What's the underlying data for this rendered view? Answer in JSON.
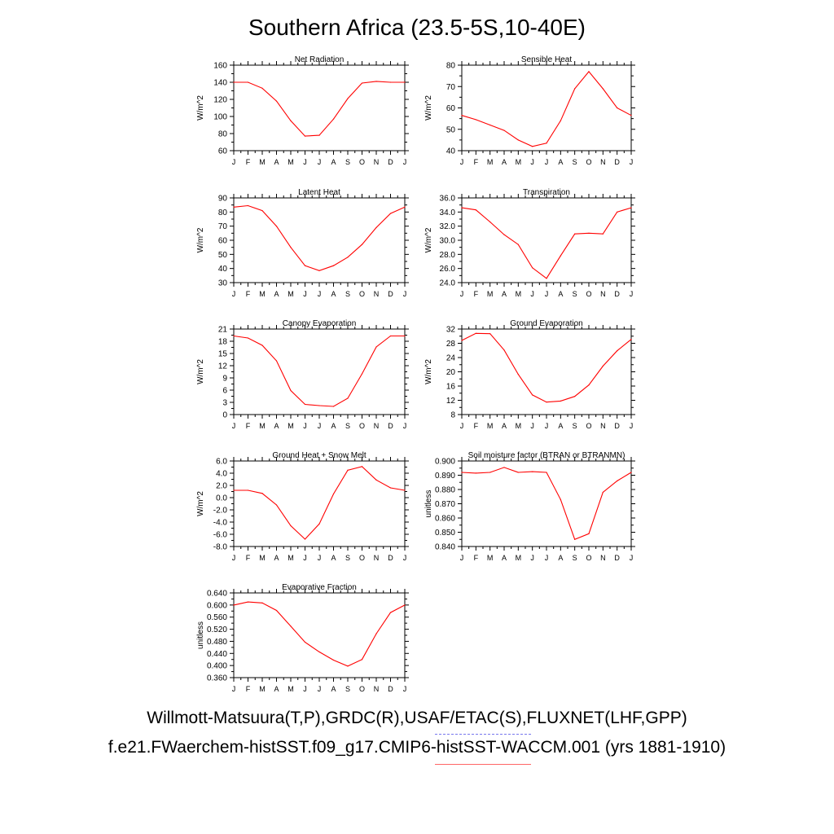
{
  "title": "Southern Africa (23.5-5S,10-40E)",
  "legend": {
    "observations": "Willmott-Matsuura(T,P),GRDC(R),USAF/ETAC(S),FLUXNET(LHF,GPP)",
    "model": "f.e21.FWaerchem-histSST.f09_g17.CMIP6-histSST-WACCM.001 (yrs 1881-1910)",
    "observations_color": "#7777ee",
    "model_color": "#ff0000"
  },
  "chart_data": [
    {
      "type": "line",
      "title": "Net Radiation",
      "ylabel": "W/m^2",
      "xticks": [
        "J",
        "F",
        "M",
        "A",
        "M",
        "J",
        "J",
        "A",
        "S",
        "O",
        "N",
        "D",
        "J"
      ],
      "yticks": [
        "60",
        "80",
        "100",
        "120",
        "140",
        "160"
      ],
      "ylim": [
        60,
        160
      ],
      "series": [
        {
          "color": "#ff0000",
          "values": [
            140,
            140,
            133,
            118,
            95,
            77,
            78,
            97,
            121,
            139,
            141,
            140,
            140
          ]
        }
      ]
    },
    {
      "type": "line",
      "title": "Sensible Heat",
      "ylabel": "W/m^2",
      "xticks": [
        "J",
        "F",
        "M",
        "A",
        "M",
        "J",
        "J",
        "A",
        "S",
        "O",
        "N",
        "D",
        "J"
      ],
      "yticks": [
        "40",
        "50",
        "60",
        "70",
        "80"
      ],
      "ylim": [
        40,
        80
      ],
      "series": [
        {
          "color": "#ff0000",
          "values": [
            56.5,
            54.5,
            52,
            49.5,
            45,
            42,
            43.5,
            54,
            69,
            77,
            69,
            60,
            56.5
          ]
        }
      ]
    },
    {
      "type": "line",
      "title": "Latent Heat",
      "ylabel": "W/m^2",
      "xticks": [
        "J",
        "F",
        "M",
        "A",
        "M",
        "J",
        "J",
        "A",
        "S",
        "O",
        "N",
        "D",
        "J"
      ],
      "yticks": [
        "30",
        "40",
        "50",
        "60",
        "70",
        "80",
        "90"
      ],
      "ylim": [
        30,
        90
      ],
      "series": [
        {
          "color": "#ff0000",
          "values": [
            83.5,
            84.5,
            81,
            70,
            55,
            42,
            38.5,
            42,
            48,
            57,
            69,
            79,
            83.5
          ]
        }
      ]
    },
    {
      "type": "line",
      "title": "Transpiration",
      "ylabel": "W/m^2",
      "xticks": [
        "J",
        "F",
        "M",
        "A",
        "M",
        "J",
        "J",
        "A",
        "S",
        "O",
        "N",
        "D",
        "J"
      ],
      "yticks": [
        "24.0",
        "26.0",
        "28.0",
        "30.0",
        "32.0",
        "34.0",
        "36.0"
      ],
      "ylim": [
        24,
        36
      ],
      "series": [
        {
          "color": "#ff0000",
          "values": [
            34.6,
            34.3,
            32.6,
            30.8,
            29.4,
            26.1,
            24.6,
            27.8,
            30.9,
            31.0,
            30.9,
            34.0,
            34.6
          ]
        }
      ]
    },
    {
      "type": "line",
      "title": "Canopy Evaporation",
      "ylabel": "W/m^2",
      "xticks": [
        "J",
        "F",
        "M",
        "A",
        "M",
        "J",
        "J",
        "A",
        "S",
        "O",
        "N",
        "D",
        "J"
      ],
      "yticks": [
        "0",
        "3",
        "6",
        "9",
        "12",
        "15",
        "18",
        "21"
      ],
      "ylim": [
        0,
        21
      ],
      "series": [
        {
          "color": "#ff0000",
          "values": [
            19.3,
            18.8,
            17.0,
            13.2,
            5.9,
            2.5,
            2.2,
            2.0,
            4.0,
            10.0,
            16.6,
            19.3,
            19.3
          ]
        }
      ]
    },
    {
      "type": "line",
      "title": "Ground Evaporation",
      "ylabel": "W/m^2",
      "xticks": [
        "J",
        "F",
        "M",
        "A",
        "M",
        "J",
        "J",
        "A",
        "S",
        "O",
        "N",
        "D",
        "J"
      ],
      "yticks": [
        "8",
        "12",
        "16",
        "20",
        "24",
        "28",
        "32"
      ],
      "ylim": [
        8,
        32
      ],
      "series": [
        {
          "color": "#ff0000",
          "values": [
            28.8,
            30.8,
            30.7,
            26.1,
            19.3,
            13.5,
            11.5,
            11.8,
            13.1,
            16.3,
            21.6,
            25.9,
            29.1
          ]
        }
      ]
    },
    {
      "type": "line",
      "title": "Ground Heat + Snow Melt",
      "ylabel": "W/m^2",
      "xticks": [
        "J",
        "F",
        "M",
        "A",
        "M",
        "J",
        "J",
        "A",
        "S",
        "O",
        "N",
        "D",
        "J"
      ],
      "yticks": [
        "-8.0",
        "-6.0",
        "-4.0",
        "-2.0",
        "0.0",
        "2.0",
        "4.0",
        "6.0"
      ],
      "ylim": [
        -8,
        6
      ],
      "series": [
        {
          "color": "#ff0000",
          "values": [
            1.2,
            1.2,
            0.7,
            -1.2,
            -4.6,
            -6.8,
            -4.3,
            0.6,
            4.5,
            5.1,
            2.9,
            1.6,
            1.2
          ]
        }
      ]
    },
    {
      "type": "line",
      "title": "Soil moisture factor (BTRAN or BTRANMN)",
      "ylabel": "unitless",
      "xticks": [
        "J",
        "F",
        "M",
        "A",
        "M",
        "J",
        "J",
        "A",
        "S",
        "O",
        "N",
        "D",
        "J"
      ],
      "yticks": [
        "0.840",
        "0.850",
        "0.860",
        "0.870",
        "0.880",
        "0.890",
        "0.900"
      ],
      "ylim": [
        0.84,
        0.9
      ],
      "series": [
        {
          "color": "#ff0000",
          "values": [
            0.892,
            0.8915,
            0.892,
            0.8955,
            0.892,
            0.8925,
            0.892,
            0.873,
            0.845,
            0.849,
            0.878,
            0.886,
            0.892
          ]
        }
      ]
    },
    {
      "type": "line",
      "title": "Evaporative Fraction",
      "ylabel": "unitless",
      "xticks": [
        "J",
        "F",
        "M",
        "A",
        "M",
        "J",
        "J",
        "A",
        "S",
        "O",
        "N",
        "D",
        "J"
      ],
      "yticks": [
        "0.360",
        "0.400",
        "0.440",
        "0.480",
        "0.520",
        "0.560",
        "0.600",
        "0.640"
      ],
      "ylim": [
        0.36,
        0.64
      ],
      "series": [
        {
          "color": "#ff0000",
          "values": [
            0.6,
            0.61,
            0.607,
            0.582,
            0.53,
            0.477,
            0.445,
            0.418,
            0.398,
            0.42,
            0.505,
            0.575,
            0.6
          ]
        }
      ]
    }
  ]
}
